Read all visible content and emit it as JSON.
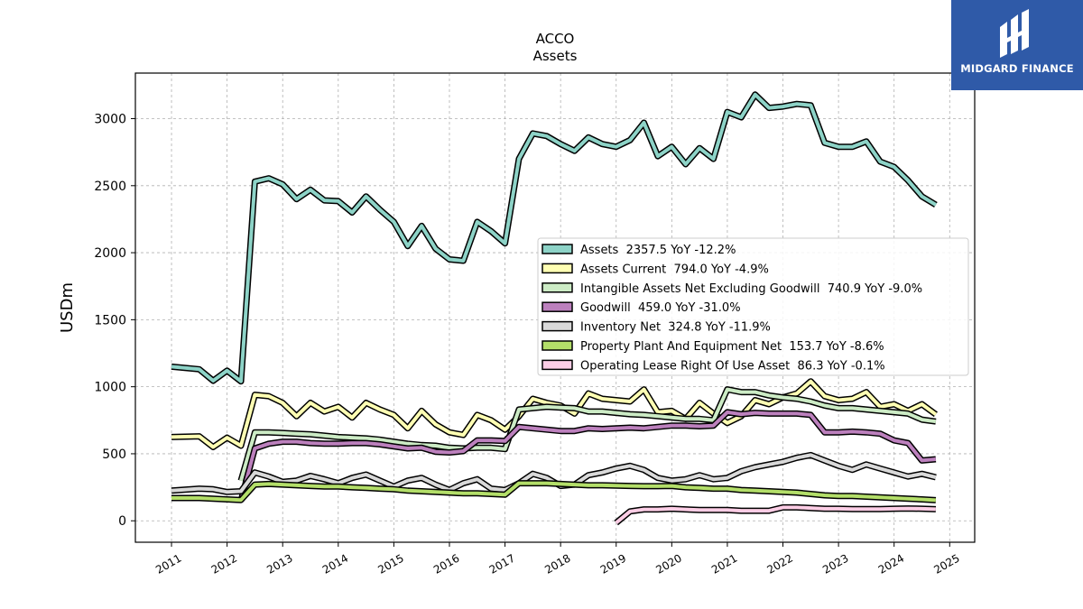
{
  "chart_data": {
    "type": "line",
    "title": "ACCO",
    "subtitle": "Assets",
    "ylabel": "USDm",
    "xlabel": "",
    "xlim": [
      2010.35,
      2025.45
    ],
    "ylim": [
      -160,
      3340
    ],
    "grid": true,
    "legend_position": "right-center",
    "x_ticks": [
      "2011",
      "2012",
      "2013",
      "2014",
      "2015",
      "2016",
      "2017",
      "2018",
      "2019",
      "2020",
      "2021",
      "2022",
      "2023",
      "2024",
      "2025"
    ],
    "y_ticks": [
      "0",
      "500",
      "1000",
      "1500",
      "2000",
      "2500",
      "3000"
    ],
    "series": [
      {
        "name": "Assets",
        "label": "Assets  2357.5 YoY -12.2%",
        "color": "#8dd3c7",
        "x": [
          2011.0,
          2011.5,
          2011.75,
          2012.0,
          2012.25,
          2012.5,
          2012.75,
          2013.0,
          2013.25,
          2013.5,
          2013.75,
          2014.0,
          2014.25,
          2014.5,
          2014.75,
          2015.0,
          2015.25,
          2015.5,
          2015.75,
          2016.0,
          2016.25,
          2016.5,
          2016.75,
          2017.0,
          2017.25,
          2017.5,
          2017.75,
          2018.0,
          2018.25,
          2018.5,
          2018.75,
          2019.0,
          2019.25,
          2019.5,
          2019.75,
          2020.0,
          2020.25,
          2020.5,
          2020.75,
          2021.0,
          2021.25,
          2021.5,
          2021.75,
          2022.0,
          2022.25,
          2022.5,
          2022.75,
          2023.0,
          2023.25,
          2023.5,
          2023.75,
          2024.0,
          2024.25,
          2024.5,
          2024.75
        ],
        "values": [
          1150,
          1130,
          1045,
          1120,
          1040,
          2530,
          2555,
          2510,
          2400,
          2470,
          2390,
          2385,
          2300,
          2420,
          2320,
          2230,
          2050,
          2200,
          2030,
          1950,
          1940,
          2230,
          2160,
          2070,
          2700,
          2890,
          2870,
          2810,
          2760,
          2860,
          2810,
          2790,
          2840,
          2970,
          2720,
          2790,
          2660,
          2780,
          2700,
          3050,
          3010,
          3180,
          3080,
          3090,
          3110,
          3100,
          2820,
          2790,
          2790,
          2830,
          2680,
          2640,
          2540,
          2420,
          2357.5
        ]
      },
      {
        "name": "Assets Current",
        "label": "Assets Current  794.0 YoY -4.9%",
        "color": "#ffffb3",
        "x": [
          2011.0,
          2011.5,
          2011.75,
          2012.0,
          2012.25,
          2012.5,
          2012.75,
          2013.0,
          2013.25,
          2013.5,
          2013.75,
          2014.0,
          2014.25,
          2014.5,
          2014.75,
          2015.0,
          2015.25,
          2015.5,
          2015.75,
          2016.0,
          2016.25,
          2016.5,
          2016.75,
          2017.0,
          2017.25,
          2017.5,
          2017.75,
          2018.0,
          2018.25,
          2018.5,
          2018.75,
          2019.0,
          2019.25,
          2019.5,
          2019.75,
          2020.0,
          2020.25,
          2020.5,
          2020.75,
          2021.0,
          2021.25,
          2021.5,
          2021.75,
          2022.0,
          2022.25,
          2022.5,
          2022.75,
          2023.0,
          2023.25,
          2023.5,
          2023.75,
          2024.0,
          2024.25,
          2024.5,
          2024.75
        ],
        "values": [
          625,
          630,
          550,
          620,
          560,
          940,
          930,
          880,
          780,
          880,
          815,
          850,
          770,
          880,
          830,
          790,
          690,
          820,
          720,
          660,
          640,
          790,
          750,
          680,
          780,
          910,
          880,
          860,
          800,
          950,
          910,
          900,
          890,
          980,
          810,
          820,
          760,
          880,
          800,
          730,
          780,
          900,
          870,
          920,
          950,
          1040,
          930,
          900,
          910,
          960,
          850,
          870,
          820,
          870,
          794
        ]
      },
      {
        "name": "Intangible Assets Net Excluding Goodwill",
        "label": "Intangible Assets Net Excluding Goodwill  740.9 YoY -9.0%",
        "color": "#ccebc5",
        "x": [
          2012.25,
          2012.5,
          2012.75,
          2013.0,
          2013.25,
          2013.5,
          2013.75,
          2014.0,
          2014.25,
          2014.5,
          2014.75,
          2015.0,
          2015.25,
          2015.5,
          2015.75,
          2016.0,
          2016.25,
          2016.5,
          2016.75,
          2017.0,
          2017.25,
          2017.5,
          2017.75,
          2018.0,
          2018.25,
          2018.5,
          2018.75,
          2019.0,
          2019.25,
          2019.5,
          2019.75,
          2020.0,
          2020.25,
          2020.5,
          2020.75,
          2021.0,
          2021.25,
          2021.5,
          2021.75,
          2022.0,
          2022.25,
          2022.5,
          2022.75,
          2023.0,
          2023.25,
          2023.5,
          2023.75,
          2024.0,
          2024.25,
          2024.5,
          2024.75
        ],
        "values": [
          300,
          660,
          660,
          655,
          650,
          645,
          635,
          625,
          620,
          615,
          605,
          590,
          575,
          565,
          560,
          545,
          540,
          545,
          545,
          535,
          830,
          840,
          850,
          845,
          840,
          815,
          815,
          805,
          795,
          790,
          780,
          770,
          760,
          760,
          750,
          980,
          960,
          960,
          935,
          920,
          910,
          890,
          860,
          840,
          840,
          830,
          820,
          810,
          800,
          755,
          740.9
        ]
      },
      {
        "name": "Goodwill",
        "label": "Goodwill  459.0 YoY -31.0%",
        "color": "#bc80bd",
        "x": [
          2012.25,
          2012.5,
          2012.75,
          2013.0,
          2013.25,
          2013.5,
          2013.75,
          2014.0,
          2014.25,
          2014.5,
          2014.75,
          2015.0,
          2015.25,
          2015.5,
          2015.75,
          2016.0,
          2016.25,
          2016.5,
          2016.75,
          2017.0,
          2017.25,
          2017.5,
          2017.75,
          2018.0,
          2018.25,
          2018.5,
          2018.75,
          2019.0,
          2019.25,
          2019.5,
          2019.75,
          2020.0,
          2020.25,
          2020.5,
          2020.75,
          2021.0,
          2021.25,
          2021.5,
          2021.75,
          2022.0,
          2022.25,
          2022.5,
          2022.75,
          2023.0,
          2023.25,
          2023.5,
          2023.75,
          2024.0,
          2024.25,
          2024.5,
          2024.75
        ],
        "values": [
          150,
          540,
          575,
          590,
          590,
          580,
          575,
          575,
          580,
          580,
          570,
          555,
          540,
          545,
          515,
          510,
          520,
          600,
          600,
          595,
          700,
          690,
          680,
          670,
          670,
          690,
          685,
          690,
          695,
          690,
          700,
          710,
          710,
          705,
          710,
          810,
          795,
          805,
          800,
          800,
          800,
          790,
          660,
          660,
          665,
          660,
          650,
          600,
          580,
          450,
          459
        ]
      },
      {
        "name": "Inventory Net",
        "label": "Inventory Net  324.8 YoY -11.9%",
        "color": "#d9d9d9",
        "x": [
          2011.0,
          2011.5,
          2011.75,
          2012.0,
          2012.25,
          2012.5,
          2012.75,
          2013.0,
          2013.25,
          2013.5,
          2013.75,
          2014.0,
          2014.25,
          2014.5,
          2014.75,
          2015.0,
          2015.25,
          2015.5,
          2015.75,
          2016.0,
          2016.25,
          2016.5,
          2016.75,
          2017.0,
          2017.25,
          2017.5,
          2017.75,
          2018.0,
          2018.25,
          2018.5,
          2018.75,
          2019.0,
          2019.25,
          2019.5,
          2019.75,
          2020.0,
          2020.25,
          2020.5,
          2020.75,
          2021.0,
          2021.25,
          2021.5,
          2021.75,
          2022.0,
          2022.25,
          2022.5,
          2022.75,
          2023.0,
          2023.25,
          2023.5,
          2023.75,
          2024.0,
          2024.25,
          2024.5,
          2024.75
        ],
        "values": [
          225,
          240,
          235,
          215,
          220,
          360,
          330,
          290,
          300,
          335,
          310,
          280,
          320,
          345,
          300,
          255,
          300,
          320,
          270,
          230,
          280,
          310,
          240,
          230,
          280,
          350,
          320,
          260,
          270,
          340,
          360,
          390,
          410,
          380,
          320,
          300,
          310,
          340,
          310,
          320,
          370,
          400,
          420,
          440,
          470,
          490,
          450,
          410,
          380,
          420,
          390,
          360,
          330,
          350,
          324.8
        ]
      },
      {
        "name": "Property Plant And Equipment Net",
        "label": "Property Plant And Equipment Net  153.7 YoY -8.6%",
        "color": "#b3de69",
        "x": [
          2011.0,
          2011.5,
          2011.75,
          2012.0,
          2012.25,
          2012.5,
          2012.75,
          2013.0,
          2013.25,
          2013.5,
          2013.75,
          2014.0,
          2014.25,
          2014.5,
          2014.75,
          2015.0,
          2015.25,
          2015.5,
          2015.75,
          2016.0,
          2016.25,
          2016.5,
          2016.75,
          2017.0,
          2017.25,
          2017.5,
          2017.75,
          2018.0,
          2018.25,
          2018.5,
          2018.75,
          2019.0,
          2019.25,
          2019.5,
          2019.75,
          2020.0,
          2020.25,
          2020.5,
          2020.75,
          2021.0,
          2021.25,
          2021.5,
          2021.75,
          2022.0,
          2022.25,
          2022.5,
          2022.75,
          2023.0,
          2023.25,
          2023.5,
          2023.75,
          2024.0,
          2024.25,
          2024.5,
          2024.75
        ],
        "values": [
          170,
          170,
          165,
          160,
          155,
          270,
          275,
          270,
          265,
          260,
          255,
          255,
          250,
          245,
          240,
          235,
          225,
          220,
          215,
          210,
          205,
          205,
          200,
          195,
          280,
          280,
          280,
          275,
          270,
          265,
          265,
          262,
          260,
          258,
          258,
          260,
          250,
          245,
          240,
          240,
          230,
          225,
          220,
          215,
          210,
          200,
          190,
          185,
          185,
          180,
          175,
          170,
          165,
          160,
          153.7
        ]
      },
      {
        "name": "Operating Lease Right Of Use Asset",
        "label": "Operating Lease Right Of Use Asset  86.3 YoY -0.1%",
        "color": "#fccde5",
        "x": [
          2019.0,
          2019.25,
          2019.5,
          2019.75,
          2020.0,
          2020.25,
          2020.5,
          2020.75,
          2021.0,
          2021.25,
          2021.5,
          2021.75,
          2022.0,
          2022.25,
          2022.5,
          2022.75,
          2023.0,
          2023.25,
          2023.5,
          2023.75,
          2024.0,
          2024.25,
          2024.5,
          2024.75
        ],
        "values": [
          -15,
          70,
          85,
          85,
          90,
          85,
          80,
          80,
          80,
          75,
          75,
          75,
          100,
          100,
          95,
          90,
          90,
          88,
          88,
          88,
          90,
          92,
          90,
          86.3
        ]
      }
    ]
  },
  "logo": {
    "text": "MIDGARD FINANCE"
  }
}
